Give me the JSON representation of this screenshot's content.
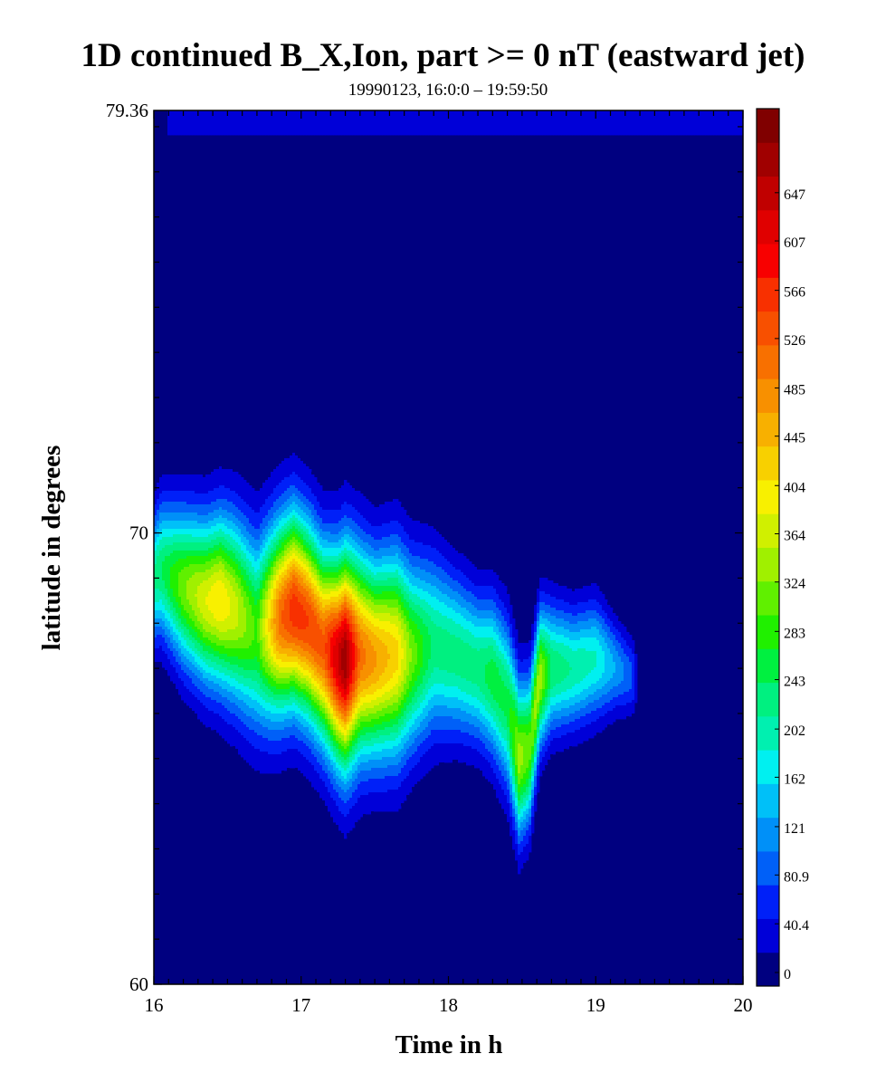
{
  "chart_data": {
    "type": "heatmap",
    "title": "1D continued B_X,Ion, part >= 0 nT (eastward jet)",
    "subtitle": "19990123, 16:0:0 – 19:59:50",
    "xlabel": "Time in h",
    "ylabel": "latitude in degrees",
    "xlim": [
      16,
      20
    ],
    "ylim": [
      60,
      79.36
    ],
    "x_ticks": [
      "16",
      "17",
      "18",
      "19",
      "20"
    ],
    "y_ticks": [
      {
        "value": 60,
        "label": "60"
      },
      {
        "value": 70,
        "label": "70"
      },
      {
        "value": 79.36,
        "label": "79.36"
      }
    ],
    "colorbar": {
      "vmin": 0,
      "vmax": 728,
      "tick_labels": [
        "0",
        "40.4",
        "80.9",
        "121",
        "162",
        "202",
        "243",
        "283",
        "324",
        "364",
        "404",
        "445",
        "485",
        "526",
        "566",
        "607",
        "647"
      ],
      "colors": [
        "#000080",
        "#0000d8",
        "#0020f8",
        "#0060f8",
        "#0090f8",
        "#00c0f8",
        "#00f0f0",
        "#00f0b0",
        "#00f080",
        "#00f040",
        "#20f000",
        "#60f000",
        "#a0f000",
        "#d0f000",
        "#f8f000",
        "#f8d000",
        "#f8b000",
        "#f89000",
        "#f87000",
        "#f85000",
        "#f83000",
        "#f80000",
        "#e00000",
        "#c00000",
        "#a00000",
        "#800000"
      ]
    },
    "jet_centerline": [
      {
        "t": 16.0,
        "lat": 69.0,
        "amp": 230,
        "width": 1.3
      },
      {
        "t": 16.05,
        "lat": 69.2,
        "amp": 250,
        "width": 1.4
      },
      {
        "t": 16.2,
        "lat": 68.8,
        "amp": 330,
        "width": 1.6
      },
      {
        "t": 16.35,
        "lat": 68.5,
        "amp": 390,
        "width": 1.7
      },
      {
        "t": 16.45,
        "lat": 68.5,
        "amp": 420,
        "width": 1.8
      },
      {
        "t": 16.55,
        "lat": 68.3,
        "amp": 380,
        "width": 1.9
      },
      {
        "t": 16.7,
        "lat": 67.8,
        "amp": 300,
        "width": 2.0
      },
      {
        "t": 16.85,
        "lat": 68.1,
        "amp": 520,
        "width": 2.0
      },
      {
        "t": 16.95,
        "lat": 68.3,
        "amp": 580,
        "width": 2.0
      },
      {
        "t": 17.05,
        "lat": 68.0,
        "amp": 560,
        "width": 2.0
      },
      {
        "t": 17.15,
        "lat": 67.5,
        "amp": 540,
        "width": 2.0
      },
      {
        "t": 17.25,
        "lat": 67.2,
        "amp": 650,
        "width": 2.1
      },
      {
        "t": 17.3,
        "lat": 67.2,
        "amp": 700,
        "width": 2.2
      },
      {
        "t": 17.4,
        "lat": 67.3,
        "amp": 520,
        "width": 2.1
      },
      {
        "t": 17.5,
        "lat": 67.2,
        "amp": 480,
        "width": 2.0
      },
      {
        "t": 17.65,
        "lat": 67.3,
        "amp": 430,
        "width": 2.1
      },
      {
        "t": 17.75,
        "lat": 67.3,
        "amp": 330,
        "width": 1.9
      },
      {
        "t": 17.9,
        "lat": 67.5,
        "amp": 240,
        "width": 1.8
      },
      {
        "t": 18.05,
        "lat": 67.3,
        "amp": 240,
        "width": 1.6
      },
      {
        "t": 18.2,
        "lat": 67.0,
        "amp": 240,
        "width": 1.5
      },
      {
        "t": 18.3,
        "lat": 66.8,
        "amp": 270,
        "width": 1.6
      },
      {
        "t": 18.4,
        "lat": 66.2,
        "amp": 260,
        "width": 1.7
      },
      {
        "t": 18.48,
        "lat": 65.0,
        "amp": 350,
        "width": 1.6
      },
      {
        "t": 18.55,
        "lat": 65.2,
        "amp": 320,
        "width": 1.5
      },
      {
        "t": 18.62,
        "lat": 66.8,
        "amp": 360,
        "width": 1.4
      },
      {
        "t": 18.7,
        "lat": 67.0,
        "amp": 250,
        "width": 1.3
      },
      {
        "t": 18.85,
        "lat": 67.0,
        "amp": 220,
        "width": 1.2
      },
      {
        "t": 19.0,
        "lat": 67.2,
        "amp": 200,
        "width": 1.2
      },
      {
        "t": 19.15,
        "lat": 67.0,
        "amp": 130,
        "width": 0.9
      },
      {
        "t": 19.25,
        "lat": 66.8,
        "amp": 90,
        "width": 0.8
      },
      {
        "t": 19.3,
        "lat": 66.8,
        "amp": 0,
        "width": 0.6
      }
    ],
    "high_lat_band": {
      "lat": 79.1,
      "amp": 55,
      "width": 0.35,
      "t_start": 16.1,
      "t_end": 20.0
    }
  }
}
